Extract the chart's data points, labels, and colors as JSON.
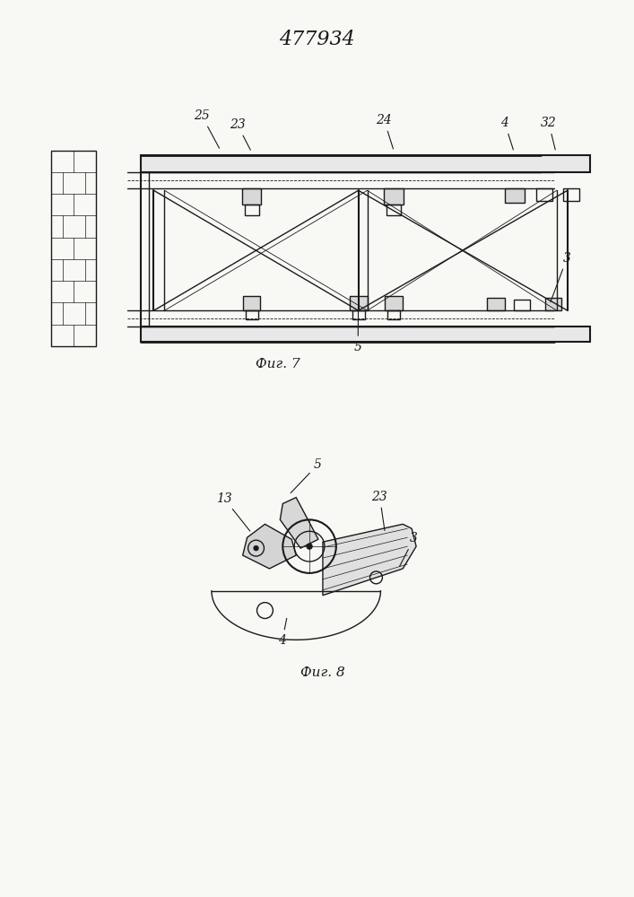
{
  "title": "477934",
  "bg_color": "#f8f8f5",
  "line_color": "#1a1a1a",
  "fig7_caption": "Фиг. 7",
  "fig8_caption": "Фиг. 8",
  "title_fontsize": 16,
  "label_fontsize": 10
}
